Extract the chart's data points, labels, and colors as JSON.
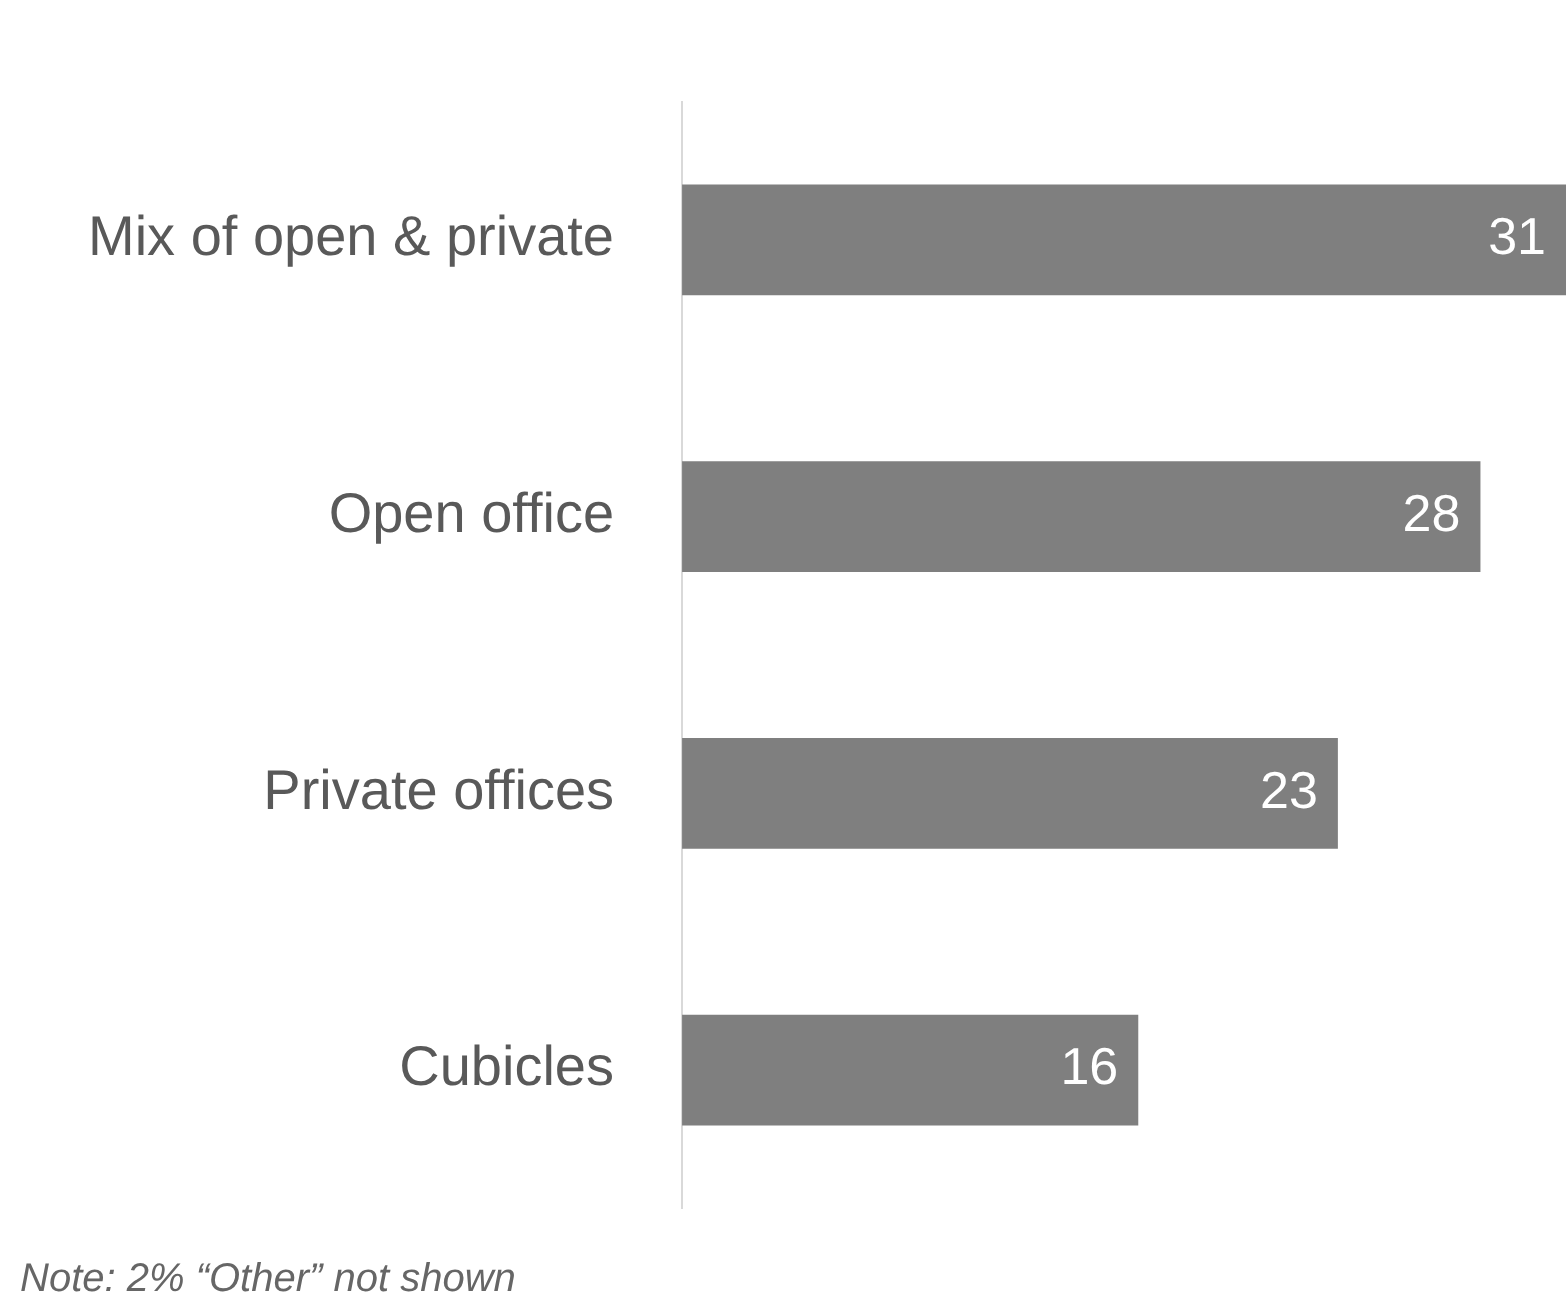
{
  "chart_data": {
    "type": "bar",
    "orientation": "horizontal",
    "categories": [
      "Mix of open & private",
      "Open office",
      "Private offices",
      "Cubicles"
    ],
    "values": [
      31,
      28,
      23,
      16
    ],
    "color": "#7f7f7f",
    "xlim": [
      0,
      31
    ],
    "data_labels": true,
    "grid": false,
    "legend": false,
    "tick_labels": "y",
    "annotations": [
      "Note: 2% “Other” not shown"
    ]
  }
}
